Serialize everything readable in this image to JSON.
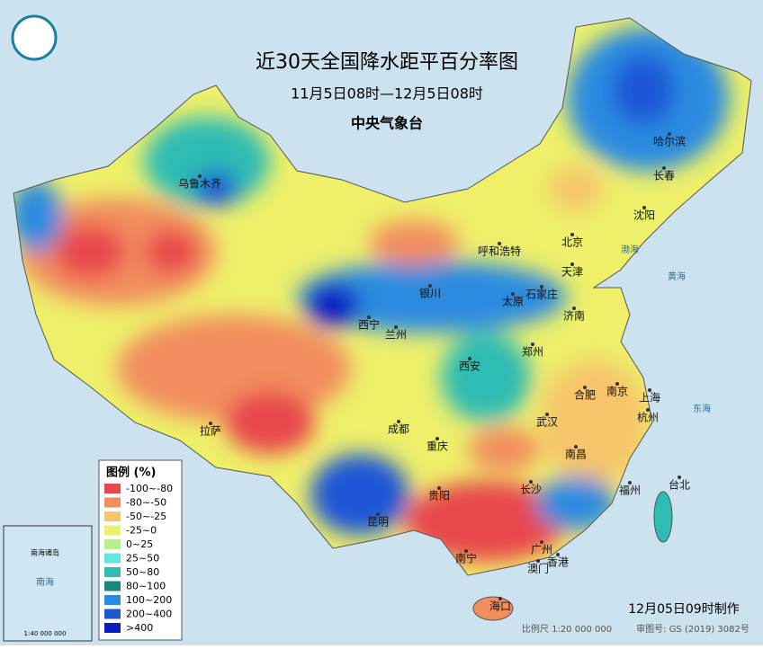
{
  "header": {
    "title": "近30天全国降水距平百分率图",
    "subtitle": "11月5日08时—12月5日08时",
    "issuer": "中央气象台"
  },
  "legend": {
    "title": "图例 (%)",
    "items": [
      {
        "label": "-100~-80",
        "color": "#e8474b"
      },
      {
        "label": "-80~-50",
        "color": "#f28e5e"
      },
      {
        "label": "-50~-25",
        "color": "#f6c46a"
      },
      {
        "label": "-25~0",
        "color": "#eef06a"
      },
      {
        "label": "0~25",
        "color": "#b7ef8a"
      },
      {
        "label": "25~50",
        "color": "#5ee8df"
      },
      {
        "label": "50~80",
        "color": "#2fbcb4"
      },
      {
        "label": "80~100",
        "color": "#16877f"
      },
      {
        "label": "100~200",
        "color": "#2a8be0"
      },
      {
        "label": "200~400",
        "color": "#1e56d6"
      },
      {
        "label": ">400",
        "color": "#0a1bc4"
      }
    ]
  },
  "cities": [
    "乌鲁木齐",
    "哈尔滨",
    "长春",
    "沈阳",
    "呼和浩特",
    "北京",
    "天津",
    "银川",
    "太原",
    "石家庄",
    "济南",
    "西宁",
    "兰州",
    "郑州",
    "西安",
    "合肥",
    "南京",
    "上海",
    "拉萨",
    "成都",
    "武汉",
    "杭州",
    "重庆",
    "南昌",
    "长沙",
    "台北",
    "福州",
    "贵阳",
    "昆明",
    "广州",
    "澳门",
    "香港",
    "南宁",
    "海口"
  ],
  "seas": [
    "渤海",
    "黄海",
    "东海",
    "南海"
  ],
  "inset": {
    "label": "南海诸岛",
    "scale": "1:40 000 000"
  },
  "footer": {
    "made": "12月05日09时制作",
    "scale": "比例尺 1:20 000 000",
    "approval": "审图号: GS (2019) 3082号"
  }
}
